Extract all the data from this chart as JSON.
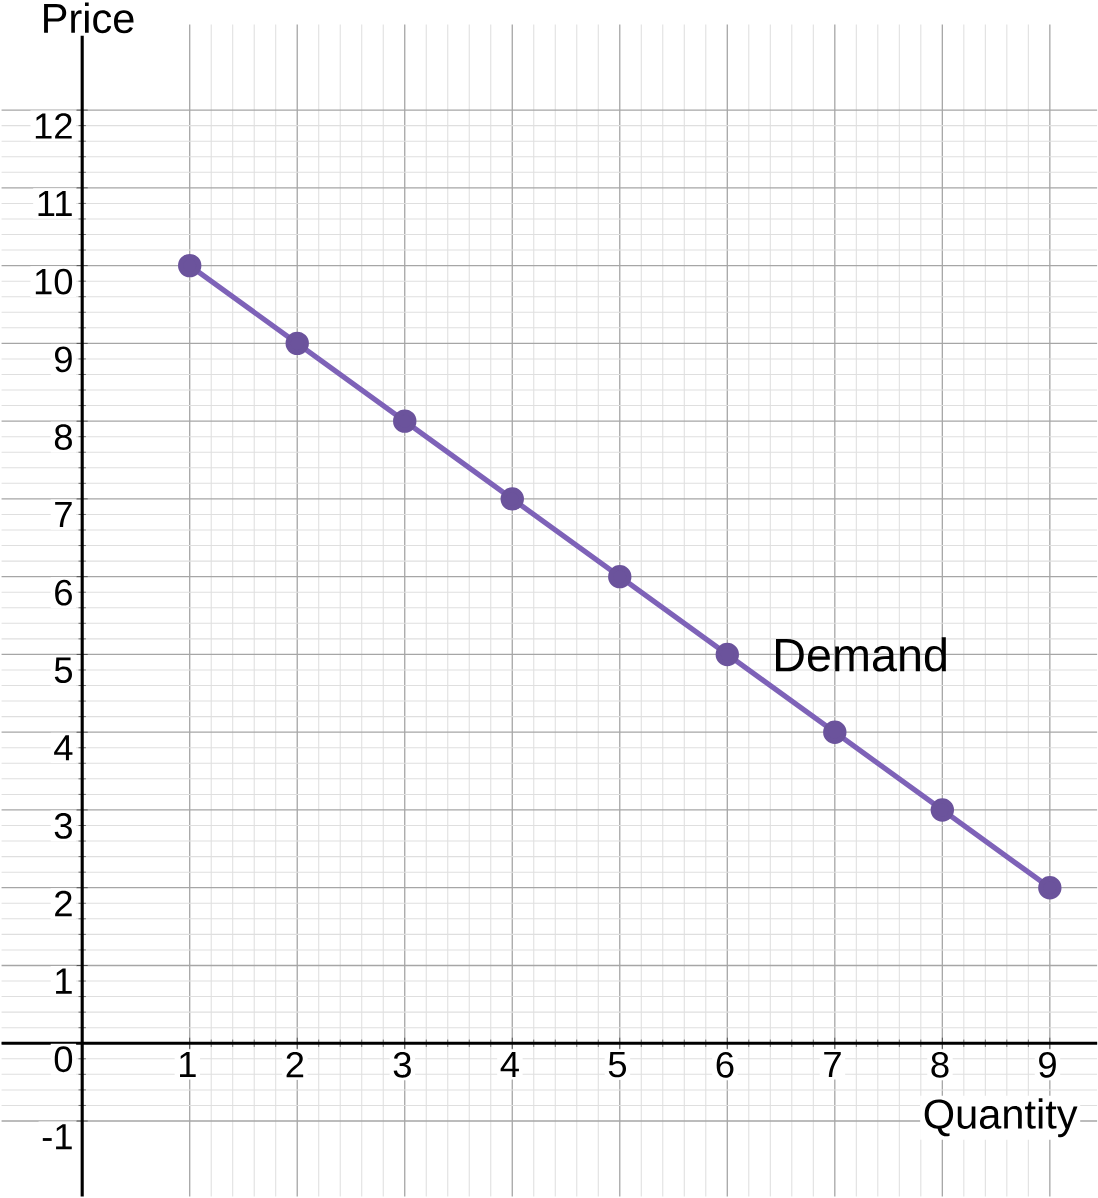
{
  "chart_data": {
    "type": "line",
    "xlabel": "Quantity",
    "ylabel": "Price",
    "x": [
      1,
      2,
      3,
      4,
      5,
      6,
      7,
      8,
      9
    ],
    "series": [
      {
        "color": "#7e62b8",
        "values": [
          10,
          9,
          8,
          7,
          6,
          5,
          4,
          3,
          2
        ]
      }
    ],
    "annotations": [
      "Demand"
    ],
    "xlim": [
      -0.75,
      9.44
    ],
    "ylim": [
      -1.97,
      13.1
    ],
    "xticks": [
      1,
      2,
      3,
      4,
      5,
      6,
      7,
      8,
      9
    ],
    "yticks": [
      -1,
      0,
      1,
      2,
      3,
      4,
      5,
      6,
      7,
      8,
      9,
      10,
      11,
      12
    ],
    "grid": true,
    "marker": "circle",
    "line_style": "solid"
  }
}
